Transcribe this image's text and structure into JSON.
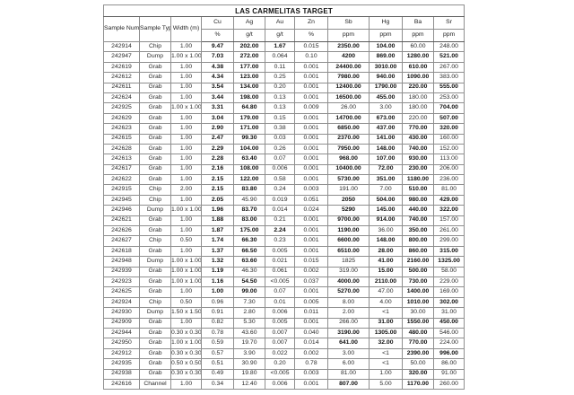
{
  "table": {
    "title": "LAS CARMELITAS TARGET",
    "header": {
      "groups": [
        "Sample\nNumber",
        "Sample\nType",
        "Width\n(m)"
      ],
      "elements": [
        "Cu",
        "Ag",
        "Au",
        "Zn",
        "Sb",
        "Hg",
        "Ba",
        "Sr"
      ],
      "units": [
        "%",
        "g/t",
        "g/t",
        "%",
        "ppm",
        "ppm",
        "ppm",
        "ppm"
      ]
    },
    "col_keys": [
      "sample-number",
      "sample-type",
      "width",
      "cu",
      "ag",
      "au",
      "zn",
      "sb",
      "hg",
      "ba",
      "sr"
    ],
    "rows": [
      {
        "sample": "242914",
        "type": "Chip",
        "width": "1.00",
        "values": [
          "9.47",
          "202.00",
          "1.67",
          "0.015",
          "2350.00",
          "104.00",
          "60.00",
          "248.00"
        ],
        "bold": [
          1,
          1,
          1,
          0,
          1,
          1,
          0,
          0
        ]
      },
      {
        "sample": "242947",
        "type": "Dump",
        "width": "1.00 x 1.00",
        "values": [
          "7.03",
          "272.00",
          "0.064",
          "0.10",
          "4200",
          "869.00",
          "1280.00",
          "521.00"
        ],
        "bold": [
          1,
          1,
          0,
          0,
          1,
          1,
          1,
          1
        ]
      },
      {
        "sample": "242619",
        "type": "Grab",
        "width": "1.00",
        "values": [
          "4.38",
          "177.00",
          "0.11",
          "0.001",
          "24400.00",
          "3010.00",
          "610.00",
          "267.00"
        ],
        "bold": [
          1,
          1,
          0,
          0,
          1,
          1,
          1,
          0
        ]
      },
      {
        "sample": "242612",
        "type": "Grab",
        "width": "1.00",
        "values": [
          "4.34",
          "123.00",
          "0.25",
          "0.001",
          "7980.00",
          "940.00",
          "1090.00",
          "383.00"
        ],
        "bold": [
          1,
          1,
          0,
          0,
          1,
          1,
          1,
          0
        ]
      },
      {
        "sample": "242611",
        "type": "Grab",
        "width": "1.00",
        "values": [
          "3.54",
          "134.00",
          "0.20",
          "0.001",
          "12400.00",
          "1790.00",
          "220.00",
          "555.00"
        ],
        "bold": [
          1,
          1,
          0,
          0,
          1,
          1,
          1,
          1
        ]
      },
      {
        "sample": "242624",
        "type": "Grab",
        "width": "1.00",
        "values": [
          "3.44",
          "198.00",
          "0.13",
          "0.001",
          "16500.00",
          "455.00",
          "180.00",
          "253.00"
        ],
        "bold": [
          1,
          1,
          0,
          0,
          1,
          1,
          0,
          0
        ]
      },
      {
        "sample": "242925",
        "type": "Grab",
        "width": "1.00 x 1.00",
        "values": [
          "3.31",
          "64.80",
          "0.13",
          "0.009",
          "26.00",
          "3.00",
          "180.00",
          "704.00"
        ],
        "bold": [
          1,
          1,
          0,
          0,
          0,
          0,
          0,
          1
        ]
      },
      {
        "sample": "242629",
        "type": "Grab",
        "width": "1.00",
        "values": [
          "3.04",
          "179.00",
          "0.15",
          "0.001",
          "14700.00",
          "673.00",
          "220.00",
          "507.00"
        ],
        "bold": [
          1,
          1,
          0,
          0,
          1,
          1,
          0,
          1
        ]
      },
      {
        "sample": "242623",
        "type": "Grab",
        "width": "1.00",
        "values": [
          "2.90",
          "171.00",
          "0.38",
          "0.001",
          "6850.00",
          "437.00",
          "770.00",
          "320.00"
        ],
        "bold": [
          1,
          1,
          0,
          0,
          1,
          1,
          1,
          1
        ]
      },
      {
        "sample": "242615",
        "type": "Grab",
        "width": "1.00",
        "values": [
          "2.47",
          "99.30",
          "0.03",
          "0.001",
          "2370.00",
          "141.00",
          "430.00",
          "160.00"
        ],
        "bold": [
          1,
          1,
          0,
          0,
          1,
          1,
          1,
          0
        ]
      },
      {
        "sample": "242628",
        "type": "Grab",
        "width": "1.00",
        "values": [
          "2.29",
          "104.00",
          "0.26",
          "0.001",
          "7950.00",
          "148.00",
          "740.00",
          "152.00"
        ],
        "bold": [
          1,
          1,
          0,
          0,
          1,
          1,
          1,
          0
        ]
      },
      {
        "sample": "242613",
        "type": "Grab",
        "width": "1.00",
        "values": [
          "2.28",
          "63.40",
          "0.07",
          "0.001",
          "968.00",
          "107.00",
          "930.00",
          "113.00"
        ],
        "bold": [
          1,
          1,
          0,
          0,
          1,
          1,
          1,
          0
        ]
      },
      {
        "sample": "242617",
        "type": "Grab",
        "width": "1.00",
        "values": [
          "2.16",
          "108.00",
          "0.006",
          "0.001",
          "10400.00",
          "72.00",
          "230.00",
          "206.00"
        ],
        "bold": [
          1,
          1,
          0,
          0,
          1,
          1,
          1,
          0
        ]
      },
      {
        "sample": "242622",
        "type": "Grab",
        "width": "1.00",
        "values": [
          "2.15",
          "122.00",
          "0.58",
          "0.001",
          "5730.00",
          "351.00",
          "1180.00",
          "236.00"
        ],
        "bold": [
          1,
          1,
          0,
          0,
          1,
          1,
          1,
          0
        ]
      },
      {
        "sample": "242915",
        "type": "Chip",
        "width": "2.00",
        "values": [
          "2.15",
          "83.80",
          "0.24",
          "0.003",
          "191.00",
          "7.00",
          "510.00",
          "81.00"
        ],
        "bold": [
          1,
          1,
          0,
          0,
          0,
          0,
          1,
          0
        ]
      },
      {
        "sample": "242945",
        "type": "Chip",
        "width": "1.00",
        "values": [
          "2.05",
          "45.90",
          "0.019",
          "0.051",
          "2050",
          "504.00",
          "980.00",
          "429.00"
        ],
        "bold": [
          1,
          0,
          0,
          0,
          1,
          1,
          1,
          1
        ]
      },
      {
        "sample": "242946",
        "type": "Dump",
        "width": "1.00 x 1.00",
        "values": [
          "1.96",
          "83.70",
          "0.014",
          "0.024",
          "5290",
          "145.00",
          "440.00",
          "322.00"
        ],
        "bold": [
          1,
          1,
          0,
          0,
          1,
          1,
          1,
          1
        ]
      },
      {
        "sample": "242621",
        "type": "Grab",
        "width": "1.00",
        "values": [
          "1.88",
          "83.00",
          "0.21",
          "0.001",
          "9700.00",
          "914.00",
          "740.00",
          "157.00"
        ],
        "bold": [
          1,
          1,
          0,
          0,
          1,
          1,
          1,
          0
        ]
      },
      {
        "sample": "242626",
        "type": "Grab",
        "width": "1.00",
        "values": [
          "1.87",
          "175.00",
          "2.24",
          "0.001",
          "1190.00",
          "36.00",
          "350.00",
          "261.00"
        ],
        "bold": [
          1,
          1,
          1,
          0,
          1,
          0,
          1,
          0
        ]
      },
      {
        "sample": "242627",
        "type": "Chip",
        "width": "0.50",
        "values": [
          "1.74",
          "66.30",
          "0.23",
          "0.001",
          "6600.00",
          "148.00",
          "800.00",
          "299.00"
        ],
        "bold": [
          1,
          1,
          0,
          0,
          1,
          1,
          1,
          0
        ]
      },
      {
        "sample": "242618",
        "type": "Grab",
        "width": "1.00",
        "values": [
          "1.37",
          "66.50",
          "0.005",
          "0.001",
          "6510.00",
          "28.00",
          "860.00",
          "315.00"
        ],
        "bold": [
          1,
          1,
          0,
          0,
          1,
          1,
          1,
          1
        ]
      },
      {
        "sample": "242948",
        "type": "Dump",
        "width": "1.00 x 1.00",
        "values": [
          "1.32",
          "63.60",
          "0.021",
          "0.015",
          "1825",
          "41.00",
          "2160.00",
          "1325.00"
        ],
        "bold": [
          1,
          1,
          0,
          0,
          0,
          1,
          1,
          1
        ]
      },
      {
        "sample": "242939",
        "type": "Grab",
        "width": "1.00 x 1.00",
        "values": [
          "1.19",
          "46.30",
          "0.061",
          "0.002",
          "319.00",
          "15.00",
          "500.00",
          "58.00"
        ],
        "bold": [
          1,
          0,
          0,
          0,
          0,
          1,
          1,
          0
        ]
      },
      {
        "sample": "242923",
        "type": "Grab",
        "width": "1.00 x 1.00",
        "values": [
          "1.16",
          "54.50",
          "<0.005",
          "0.037",
          "4000.00",
          "2110.00",
          "730.00",
          "229.00"
        ],
        "bold": [
          1,
          1,
          0,
          0,
          1,
          1,
          1,
          0
        ]
      },
      {
        "sample": "242625",
        "type": "Grab",
        "width": "1.00",
        "values": [
          "1.00",
          "99.00",
          "0.07",
          "0.001",
          "5270.00",
          "47.00",
          "1400.00",
          "169.00"
        ],
        "bold": [
          1,
          1,
          0,
          0,
          1,
          0,
          1,
          0
        ]
      },
      {
        "sample": "242924",
        "type": "Chip",
        "width": "0.50",
        "values": [
          "0.96",
          "7.30",
          "0.01",
          "0.005",
          "8.00",
          "4.00",
          "1010.00",
          "302.00"
        ],
        "bold": [
          0,
          0,
          0,
          0,
          0,
          0,
          1,
          1
        ]
      },
      {
        "sample": "242930",
        "type": "Dump",
        "width": "1.50 x 1.50",
        "values": [
          "0.91",
          "2.80",
          "0.006",
          "0.011",
          "2.00",
          "<1",
          "30.00",
          "31.00"
        ],
        "bold": [
          0,
          0,
          0,
          0,
          0,
          0,
          0,
          0
        ]
      },
      {
        "sample": "242909",
        "type": "Grab",
        "width": "1.00",
        "values": [
          "0.82",
          "5.30",
          "0.005",
          "0.001",
          "266.00",
          "31.00",
          "1550.00",
          "450.00"
        ],
        "bold": [
          0,
          0,
          0,
          0,
          0,
          1,
          1,
          1
        ]
      },
      {
        "sample": "242944",
        "type": "Grab",
        "width": "0.30 x 0.30",
        "values": [
          "0.78",
          "43.60",
          "0.007",
          "0.040",
          "3190.00",
          "1305.00",
          "480.00",
          "546.00"
        ],
        "bold": [
          0,
          0,
          0,
          0,
          1,
          1,
          1,
          0
        ]
      },
      {
        "sample": "242950",
        "type": "Grab",
        "width": "1.00 x 1.00",
        "values": [
          "0.59",
          "19.70",
          "0.007",
          "0.014",
          "641.00",
          "32.00",
          "770.00",
          "224.00"
        ],
        "bold": [
          0,
          0,
          0,
          0,
          1,
          1,
          1,
          0
        ]
      },
      {
        "sample": "242912",
        "type": "Grab",
        "width": "0.30 x 0.30",
        "values": [
          "0.57",
          "3.90",
          "0.022",
          "0.002",
          "3.00",
          "<1",
          "2390.00",
          "996.00"
        ],
        "bold": [
          0,
          0,
          0,
          0,
          0,
          0,
          1,
          1
        ]
      },
      {
        "sample": "242935",
        "type": "Grab",
        "width": "0.50 x 0.50",
        "values": [
          "0.51",
          "30.90",
          "0.20",
          "0.78",
          "6.00",
          "<1",
          "50.00",
          "86.00"
        ],
        "bold": [
          0,
          0,
          0,
          0,
          0,
          0,
          0,
          0
        ]
      },
      {
        "sample": "242938",
        "type": "Grab",
        "width": "0.30 x 0.30",
        "values": [
          "0.49",
          "19.80",
          "<0.005",
          "0.003",
          "81.00",
          "1.00",
          "320.00",
          "91.00"
        ],
        "bold": [
          0,
          0,
          0,
          0,
          0,
          0,
          1,
          0
        ]
      },
      {
        "sample": "242616",
        "type": "Channel",
        "width": "1.00",
        "values": [
          "0.34",
          "12.40",
          "0.006",
          "0.001",
          "807.00",
          "5.00",
          "1170.00",
          "260.00"
        ],
        "bold": [
          0,
          0,
          0,
          0,
          1,
          0,
          1,
          0
        ]
      }
    ]
  }
}
